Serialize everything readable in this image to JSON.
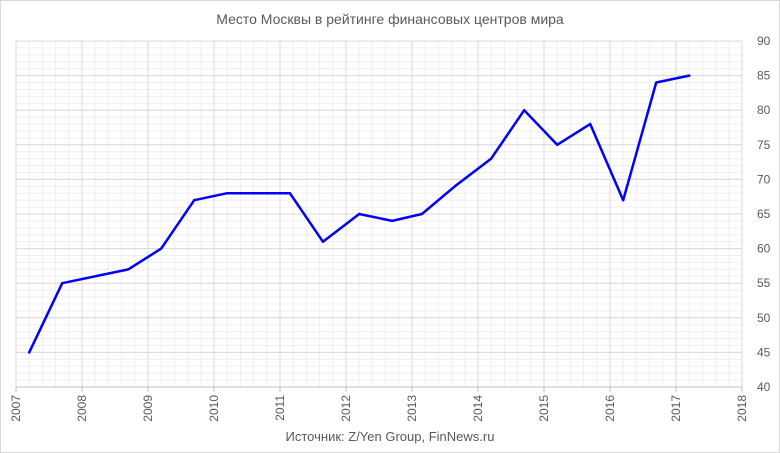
{
  "chart_data": {
    "type": "line",
    "title": "Место Москвы в рейтинге финансовых центров мира",
    "source": "Источник: Z/Yen Group, FinNews.ru",
    "xlabel": "",
    "ylabel": "",
    "xlim": [
      2007,
      2018
    ],
    "ylim": [
      40,
      90
    ],
    "x_ticks": [
      "2007",
      "2008",
      "2009",
      "2010",
      "2011",
      "2012",
      "2013",
      "2014",
      "2015",
      "2016",
      "2017",
      "2018"
    ],
    "y_ticks": [
      40,
      45,
      50,
      55,
      60,
      65,
      70,
      75,
      80,
      85,
      90
    ],
    "y_axis_side": "right",
    "grid": true,
    "minor_grid": true,
    "line_color": "#0000ff",
    "grid_color": "#d9d9d9",
    "series": [
      {
        "x": [
          2007.2,
          2007.7,
          2008.7,
          2009.2,
          2009.7,
          2010.2,
          2010.7,
          2011.15,
          2011.65,
          2012.2,
          2012.7,
          2013.15,
          2013.65,
          2014.2,
          2014.7,
          2015.2,
          2015.7,
          2016.2,
          2016.7,
          2017.2
        ],
        "values": [
          45,
          55,
          57,
          60,
          67,
          68,
          68,
          68,
          61,
          65,
          64,
          65,
          69,
          73,
          80,
          75,
          78,
          67,
          84,
          85
        ]
      }
    ]
  }
}
